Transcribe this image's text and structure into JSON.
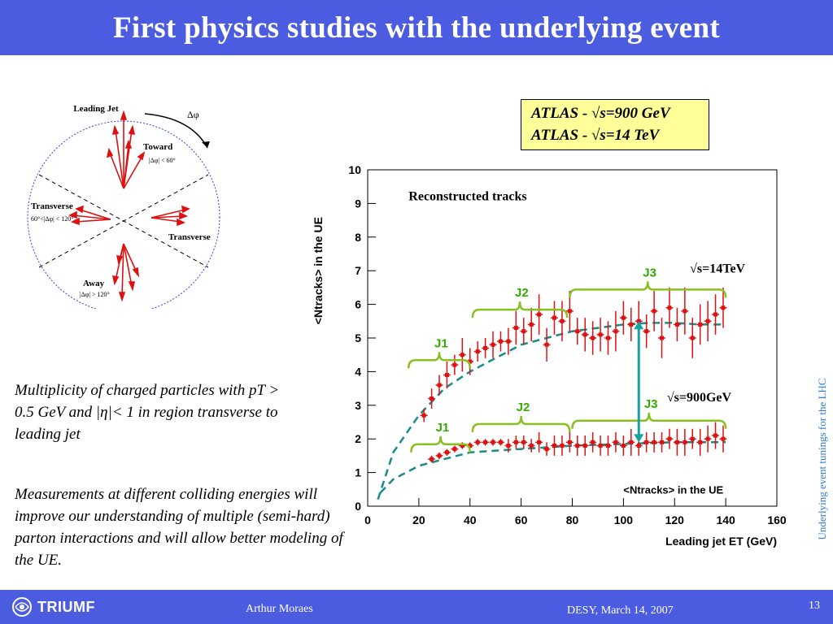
{
  "slide": {
    "title": "First physics studies with the underlying event",
    "paragraph1": "Multiplicity of charged particles with pT > 0.5 GeV and |η|< 1 in region transverse to leading jet",
    "paragraph2": "Measurements at different colliding energies will improve our understanding of multiple (semi-hard) parton interactions and will allow better modeling of the UE.",
    "side_text": "Underlying event tunings for the LHC"
  },
  "footer": {
    "logo": "TRIUMF",
    "author": "Arthur Moraes",
    "venue": "DESY, March 14, 2007",
    "page": "13"
  },
  "legend": {
    "line1": "ATLAS - √s=900 GeV",
    "line2": "ATLAS - √s=14 TeV"
  },
  "diagram": {
    "leading_jet": "Leading Jet",
    "delta_phi": "Δφ",
    "toward": "Toward",
    "toward_cut": "|Δφ| < 60°",
    "transverse_left": "Transverse",
    "transverse_cut": "60°<|Δφ| < 120°",
    "transverse_right": "Transverse",
    "away": "Away",
    "away_cut": "|Δφ| > 120°"
  },
  "colors": {
    "header": "#4b5ce0",
    "data_points": "#dd1111",
    "fit_curve": "#1a8a8a",
    "brace": "#88c020",
    "jet_label": "#33aa00",
    "arrow": "#1aa0a0",
    "legend_bg": "#ffff99",
    "side_text": "#2f7dd8"
  },
  "chart_data": {
    "type": "scatter",
    "title": "Reconstructed tracks",
    "xlabel": "Leading jet ET (GeV)",
    "ylabel": "<Ntracks> in the UE",
    "inner_label": "<Ntracks> in the UE",
    "xlim": [
      0,
      160
    ],
    "ylim": [
      0,
      10
    ],
    "xticks": [
      0,
      20,
      40,
      60,
      80,
      100,
      120,
      140,
      160
    ],
    "yticks": [
      0,
      1,
      2,
      3,
      4,
      5,
      6,
      7,
      8,
      9,
      10
    ],
    "series": [
      {
        "name": "√s=14TeV",
        "x": [
          22,
          25,
          28,
          31,
          34,
          37,
          40,
          43,
          46,
          49,
          52,
          55,
          58,
          61,
          64,
          67,
          70,
          73,
          76,
          79,
          82,
          85,
          88,
          91,
          94,
          97,
          100,
          103,
          106,
          109,
          112,
          115,
          118,
          121,
          124,
          127,
          130,
          133,
          136,
          139
        ],
        "y": [
          2.7,
          3.2,
          3.6,
          3.9,
          4.2,
          4.5,
          4.3,
          4.6,
          4.7,
          4.8,
          4.9,
          4.9,
          5.3,
          5.2,
          5.4,
          5.7,
          4.8,
          5.6,
          5.5,
          5.8,
          5.2,
          5.1,
          5.0,
          5.1,
          5.0,
          5.2,
          5.6,
          5.4,
          5.5,
          5.2,
          5.8,
          5.0,
          5.9,
          5.4,
          5.8,
          5.0,
          5.4,
          5.5,
          5.7,
          5.9
        ],
        "yerr": [
          0.2,
          0.3,
          0.3,
          0.4,
          0.3,
          0.5,
          0.4,
          0.3,
          0.3,
          0.4,
          0.3,
          0.4,
          0.5,
          0.4,
          0.5,
          0.6,
          0.5,
          0.5,
          0.6,
          0.6,
          0.4,
          0.5,
          0.5,
          0.5,
          0.5,
          0.6,
          0.5,
          0.5,
          0.6,
          0.5,
          0.6,
          0.6,
          0.6,
          0.5,
          0.7,
          0.6,
          0.6,
          0.6,
          0.6,
          0.6
        ]
      },
      {
        "name": "√s=900GeV",
        "x": [
          25,
          28,
          31,
          34,
          37,
          40,
          43,
          46,
          49,
          52,
          55,
          58,
          61,
          64,
          67,
          70,
          73,
          76,
          79,
          82,
          85,
          88,
          91,
          94,
          97,
          100,
          103,
          106,
          109,
          112,
          115,
          118,
          121,
          124,
          127,
          130,
          133,
          136,
          139
        ],
        "y": [
          1.4,
          1.5,
          1.6,
          1.7,
          1.8,
          1.8,
          1.9,
          1.9,
          1.9,
          1.9,
          1.8,
          1.9,
          1.9,
          1.8,
          1.9,
          1.7,
          1.8,
          1.8,
          1.9,
          1.8,
          1.8,
          1.9,
          1.8,
          1.8,
          1.9,
          1.8,
          1.9,
          1.8,
          1.9,
          1.9,
          1.9,
          2.0,
          1.9,
          1.9,
          2.0,
          1.9,
          2.0,
          2.1,
          2.0
        ],
        "yerr": [
          0.1,
          0.1,
          0.1,
          0.1,
          0.1,
          0.1,
          0.1,
          0.1,
          0.1,
          0.1,
          0.2,
          0.2,
          0.2,
          0.2,
          0.3,
          0.2,
          0.3,
          0.3,
          0.3,
          0.3,
          0.3,
          0.3,
          0.3,
          0.3,
          0.3,
          0.3,
          0.4,
          0.3,
          0.3,
          0.3,
          0.3,
          0.3,
          0.4,
          0.4,
          0.3,
          0.4,
          0.4,
          0.4,
          0.4
        ]
      }
    ],
    "fit_curves": [
      {
        "x": [
          4,
          10,
          20,
          30,
          40,
          50,
          60,
          70,
          80,
          90,
          100,
          110,
          120,
          130,
          140
        ],
        "y": [
          0.2,
          1.6,
          2.7,
          3.5,
          4.0,
          4.4,
          4.8,
          5.0,
          5.2,
          5.3,
          5.4,
          5.45,
          5.45,
          5.4,
          5.4
        ]
      },
      {
        "x": [
          5,
          10,
          20,
          30,
          40,
          60,
          80,
          100,
          120,
          140
        ],
        "y": [
          0.4,
          0.8,
          1.2,
          1.4,
          1.6,
          1.7,
          1.8,
          1.85,
          1.9,
          1.9
        ]
      }
    ],
    "annotations": {
      "label_14tev": "√s=14TeV",
      "label_900gev": "√s=900GeV",
      "jets_14tev": [
        {
          "label": "J1",
          "x": [
            16,
            40
          ]
        },
        {
          "label": "J2",
          "x": [
            41,
            78
          ]
        },
        {
          "label": "J3",
          "x": [
            79,
            140
          ]
        }
      ],
      "jets_900gev": [
        {
          "label": "J1",
          "x": [
            17,
            40
          ]
        },
        {
          "label": "J2",
          "x": [
            41,
            79
          ]
        },
        {
          "label": "J3",
          "x": [
            80,
            140
          ]
        }
      ],
      "arrow": {
        "x": 106,
        "y_from": 1.9,
        "y_to": 5.5
      }
    }
  }
}
